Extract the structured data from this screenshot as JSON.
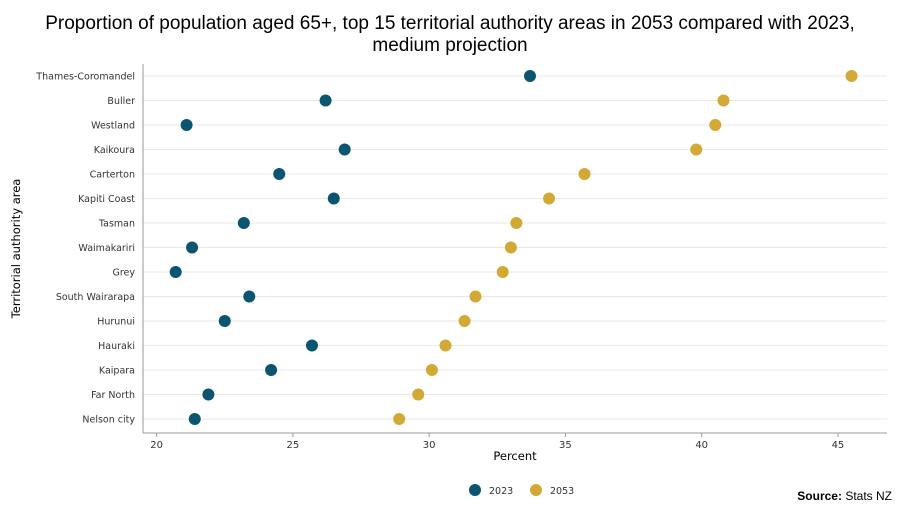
{
  "chart_data": {
    "type": "scatter",
    "title_lines": [
      "Proportion of population aged 65+, top 15 territorial authority areas in 2053 compared with 2023,",
      "medium projection"
    ],
    "xlabel": "Percent",
    "ylabel": "Territorial authority area",
    "xlim": [
      19.5,
      46.8
    ],
    "xticks": [
      20,
      25,
      30,
      35,
      40,
      45
    ],
    "categories": [
      "Thames-Coromandel",
      "Buller",
      "Westland",
      "Kaikoura",
      "Carterton",
      "Kapiti Coast",
      "Tasman",
      "Waimakariri",
      "Grey",
      "South Wairarapa",
      "Hurunui",
      "Hauraki",
      "Kaipara",
      "Far North",
      "Nelson city"
    ],
    "series": [
      {
        "name": "2023",
        "color": "#0b5570",
        "values": [
          33.7,
          26.2,
          21.1,
          26.9,
          24.5,
          26.5,
          23.2,
          21.3,
          20.7,
          23.4,
          22.5,
          25.7,
          24.2,
          21.9,
          21.4
        ]
      },
      {
        "name": "2053",
        "color": "#d2a935",
        "values": [
          45.5,
          40.8,
          40.5,
          39.8,
          35.7,
          34.4,
          33.2,
          33.0,
          32.7,
          31.7,
          31.3,
          30.6,
          30.1,
          29.6,
          28.9
        ]
      }
    ],
    "grid": true,
    "legend_position": "bottom-center"
  },
  "source": {
    "label": "Source:",
    "text": "Stats NZ"
  }
}
